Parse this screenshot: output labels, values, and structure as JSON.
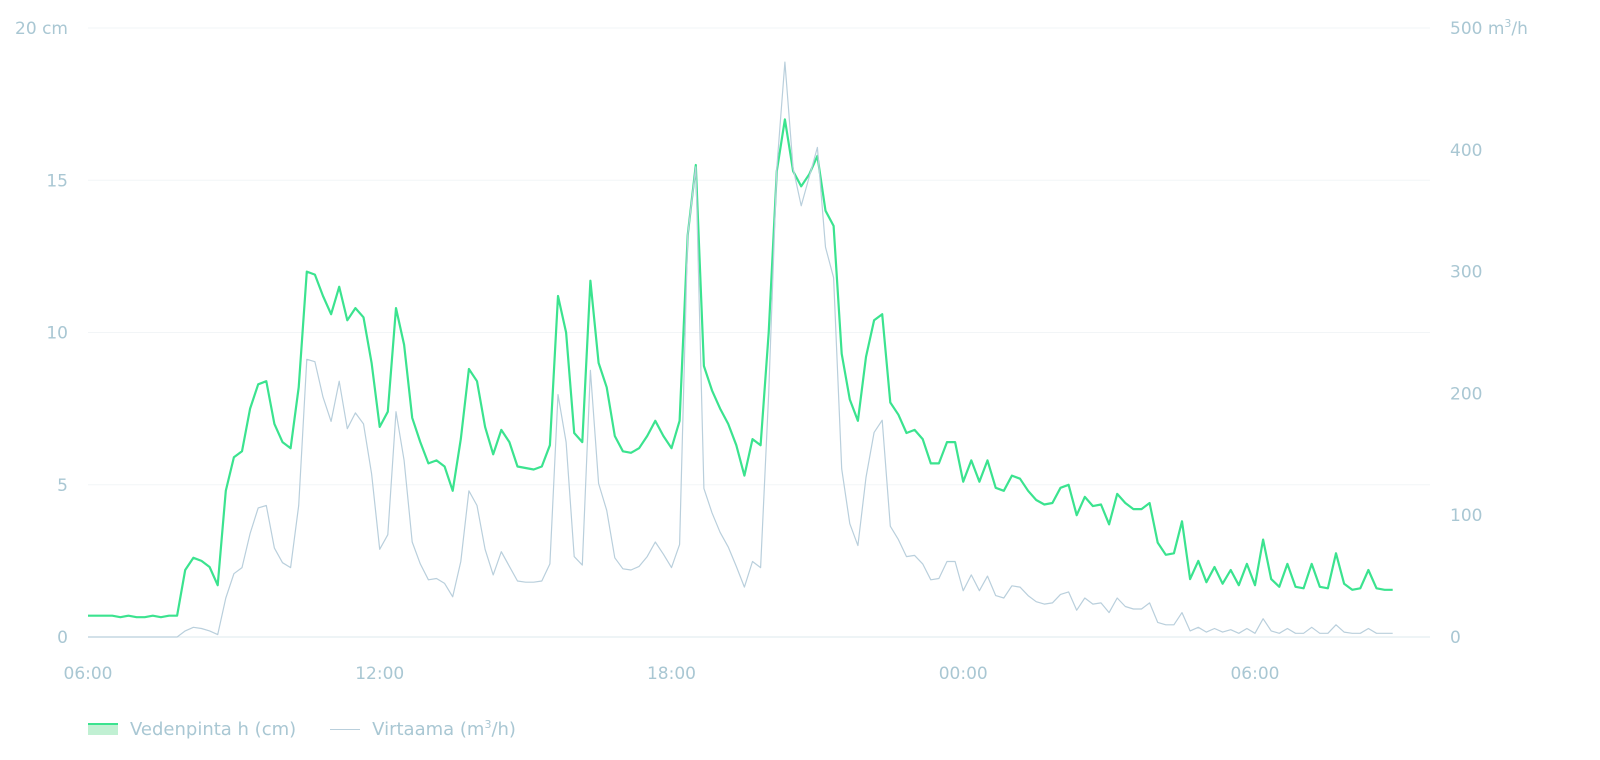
{
  "chart_data": {
    "type": "line",
    "x_axis": {
      "ticks": [
        {
          "label": "06:00",
          "hours": 0
        },
        {
          "label": "12:00",
          "hours": 6
        },
        {
          "label": "18:00",
          "hours": 12
        },
        {
          "label": "00:00",
          "hours": 18
        },
        {
          "label": "06:00",
          "hours": 24
        }
      ],
      "range_hours": [
        0,
        27.6
      ]
    },
    "y_left": {
      "min": 0,
      "max": 20,
      "ticks": [
        {
          "label": "0",
          "value": 0
        },
        {
          "label": "5",
          "value": 5
        },
        {
          "label": "10",
          "value": 10
        },
        {
          "label": "15",
          "value": 15
        },
        {
          "label": "20 cm",
          "value": 20
        }
      ]
    },
    "y_right": {
      "min": 0,
      "max": 500,
      "ticks": [
        {
          "label": "0",
          "value": 0
        },
        {
          "label": "100",
          "value": 100
        },
        {
          "label": "200",
          "value": 200
        },
        {
          "label": "300",
          "value": 300
        },
        {
          "label": "400",
          "value": 400
        },
        {
          "label": "500 m",
          "sup": "3",
          "suffix": "/h",
          "value": 500
        }
      ]
    },
    "grid": true,
    "legend": {
      "placement": "bottom-left",
      "items": [
        {
          "name": "Vedenpinta h (cm)",
          "color": "#3be38f",
          "style": "area"
        },
        {
          "name": "Virtaama (m",
          "sup": "3",
          "suffix": "/h)",
          "color": "#b9cfdc",
          "style": "line"
        }
      ]
    },
    "series": [
      {
        "name": "Vedenpinta h (cm)",
        "axis": "left",
        "color": "#3be38f",
        "x_start_hours": 0,
        "x_step_hours": 0.16667,
        "values": [
          0.7,
          0.7,
          0.7,
          0.7,
          0.65,
          0.7,
          0.65,
          0.65,
          0.7,
          0.65,
          0.7,
          0.7,
          2.2,
          2.6,
          2.5,
          2.3,
          1.7,
          4.8,
          5.9,
          6.1,
          7.5,
          8.3,
          8.4,
          7,
          6.4,
          6.2,
          8.2,
          12,
          11.9,
          11.2,
          10.6,
          11.5,
          10.4,
          10.8,
          10.5,
          9,
          6.9,
          7.4,
          10.8,
          9.6,
          7.2,
          6.4,
          5.7,
          5.8,
          5.6,
          4.8,
          6.5,
          8.8,
          8.4,
          6.9,
          6,
          6.8,
          6.4,
          5.6,
          5.55,
          5.5,
          5.6,
          6.3,
          11.2,
          10,
          6.7,
          6.4,
          11.7,
          9,
          8.2,
          6.6,
          6.1,
          6.05,
          6.2,
          6.6,
          7.1,
          6.6,
          6.2,
          7.1,
          13.2,
          15.5,
          8.9,
          8.1,
          7.5,
          7,
          6.3,
          5.3,
          6.5,
          6.3,
          10,
          15.3,
          17,
          15.3,
          14.8,
          15.2,
          15.8,
          14,
          13.5,
          9.3,
          7.8,
          7.1,
          9.2,
          10.4,
          10.6,
          7.7,
          7.3,
          6.7,
          6.8,
          6.5,
          5.7,
          5.7,
          6.4,
          6.4,
          5.1,
          5.8,
          5.1,
          5.8,
          4.9,
          4.8,
          5.3,
          5.2,
          4.8,
          4.5,
          4.35,
          4.4,
          4.9,
          5,
          4,
          4.6,
          4.3,
          4.35,
          3.7,
          4.7,
          4.4,
          4.2,
          4.2,
          4.4,
          3.1,
          2.7,
          2.75,
          3.8,
          1.9,
          2.5,
          1.8,
          2.3,
          1.75,
          2.2,
          1.7,
          2.4,
          1.7,
          3.2,
          1.9,
          1.65,
          2.4,
          1.65,
          1.6,
          2.4,
          1.65,
          1.6,
          2.75,
          1.75,
          1.55,
          1.6,
          2.2,
          1.6,
          1.55,
          1.55
        ]
      },
      {
        "name": "Virtaama (m³/h)",
        "axis": "right",
        "color": "#b9cfdc",
        "x_start_hours": 0,
        "x_step_hours": 0.16667,
        "values": [
          0,
          0,
          0,
          0,
          0,
          0,
          0,
          0,
          0,
          0,
          0,
          0,
          5,
          8,
          7,
          5,
          2,
          32,
          52,
          57,
          85,
          106,
          108,
          73,
          61,
          57,
          108,
          228,
          226,
          197,
          177,
          210,
          171,
          184,
          175,
          134,
          72,
          84,
          185,
          145,
          78,
          60,
          47,
          48,
          44,
          33,
          62,
          120,
          108,
          72,
          51,
          70,
          58,
          46,
          45,
          45,
          46,
          60,
          199,
          160,
          66,
          59,
          219,
          126,
          104,
          65,
          56,
          55,
          58,
          66,
          78,
          68,
          57,
          76,
          330,
          386,
          122,
          102,
          86,
          74,
          58,
          41,
          62,
          57,
          200,
          385,
          472,
          385,
          354,
          378,
          402,
          320,
          295,
          138,
          93,
          75,
          131,
          168,
          178,
          91,
          80,
          66,
          67,
          60,
          47,
          48,
          62,
          62,
          38,
          51,
          38,
          50,
          34,
          32,
          42,
          41,
          34,
          29,
          27,
          28,
          35,
          37,
          22,
          32,
          27,
          28,
          20,
          32,
          25,
          23,
          23,
          28,
          12,
          10,
          10,
          20,
          5,
          8,
          4,
          7,
          4,
          6,
          3,
          7,
          3,
          15,
          5,
          3,
          7,
          3,
          3,
          8,
          3,
          3,
          10,
          4,
          3,
          3,
          7,
          3,
          3,
          3
        ]
      }
    ]
  }
}
